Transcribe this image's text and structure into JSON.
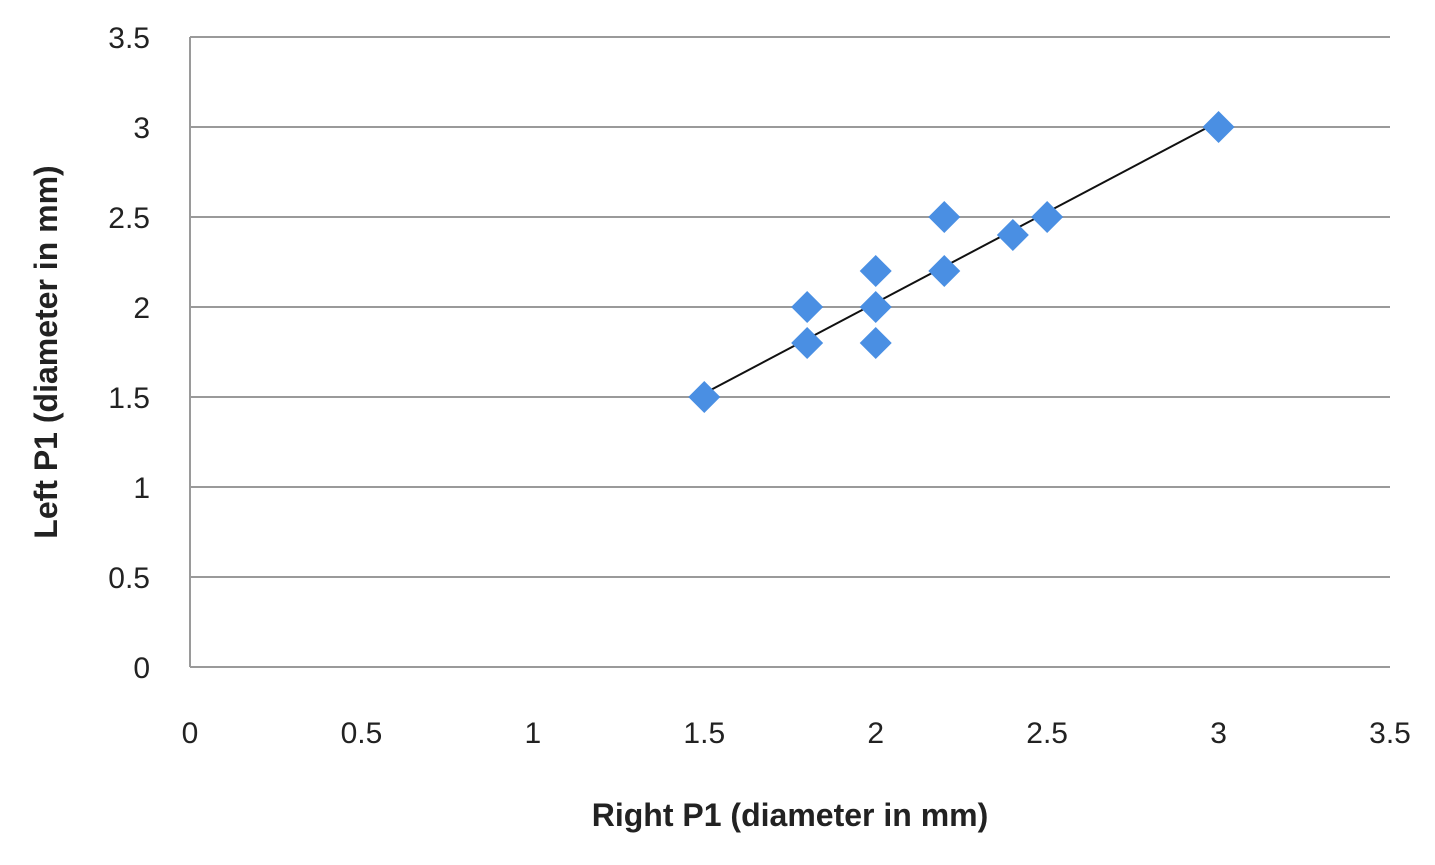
{
  "chart_data": {
    "type": "scatter",
    "title": "",
    "xlabel": "Right P1 (diameter in mm)",
    "ylabel": "Left P1 (diameter in mm)",
    "xlim": [
      0,
      3.5
    ],
    "ylim": [
      0,
      3.5
    ],
    "x_ticks": [
      "0",
      "0.5",
      "1",
      "1.5",
      "2",
      "2.5",
      "3",
      "3.5"
    ],
    "y_ticks": [
      "0",
      "0.5",
      "1",
      "1.5",
      "2",
      "2.5",
      "3",
      "3.5"
    ],
    "grid": "horizontal",
    "legend": "none",
    "marker": "diamond",
    "marker_color": "#4a8fe3",
    "gridline_color": "#9a9a9a",
    "trendline": {
      "type": "linear",
      "color": "#111111",
      "from": [
        1.5,
        1.52
      ],
      "to": [
        3.0,
        3.03
      ]
    },
    "points": [
      {
        "x": 1.5,
        "y": 1.5
      },
      {
        "x": 1.8,
        "y": 2.0
      },
      {
        "x": 1.8,
        "y": 1.8
      },
      {
        "x": 2.0,
        "y": 2.2
      },
      {
        "x": 2.0,
        "y": 2.0
      },
      {
        "x": 2.0,
        "y": 1.8
      },
      {
        "x": 2.2,
        "y": 2.5
      },
      {
        "x": 2.2,
        "y": 2.2
      },
      {
        "x": 2.4,
        "y": 2.4
      },
      {
        "x": 2.5,
        "y": 2.5
      },
      {
        "x": 3.0,
        "y": 3.0
      }
    ]
  }
}
